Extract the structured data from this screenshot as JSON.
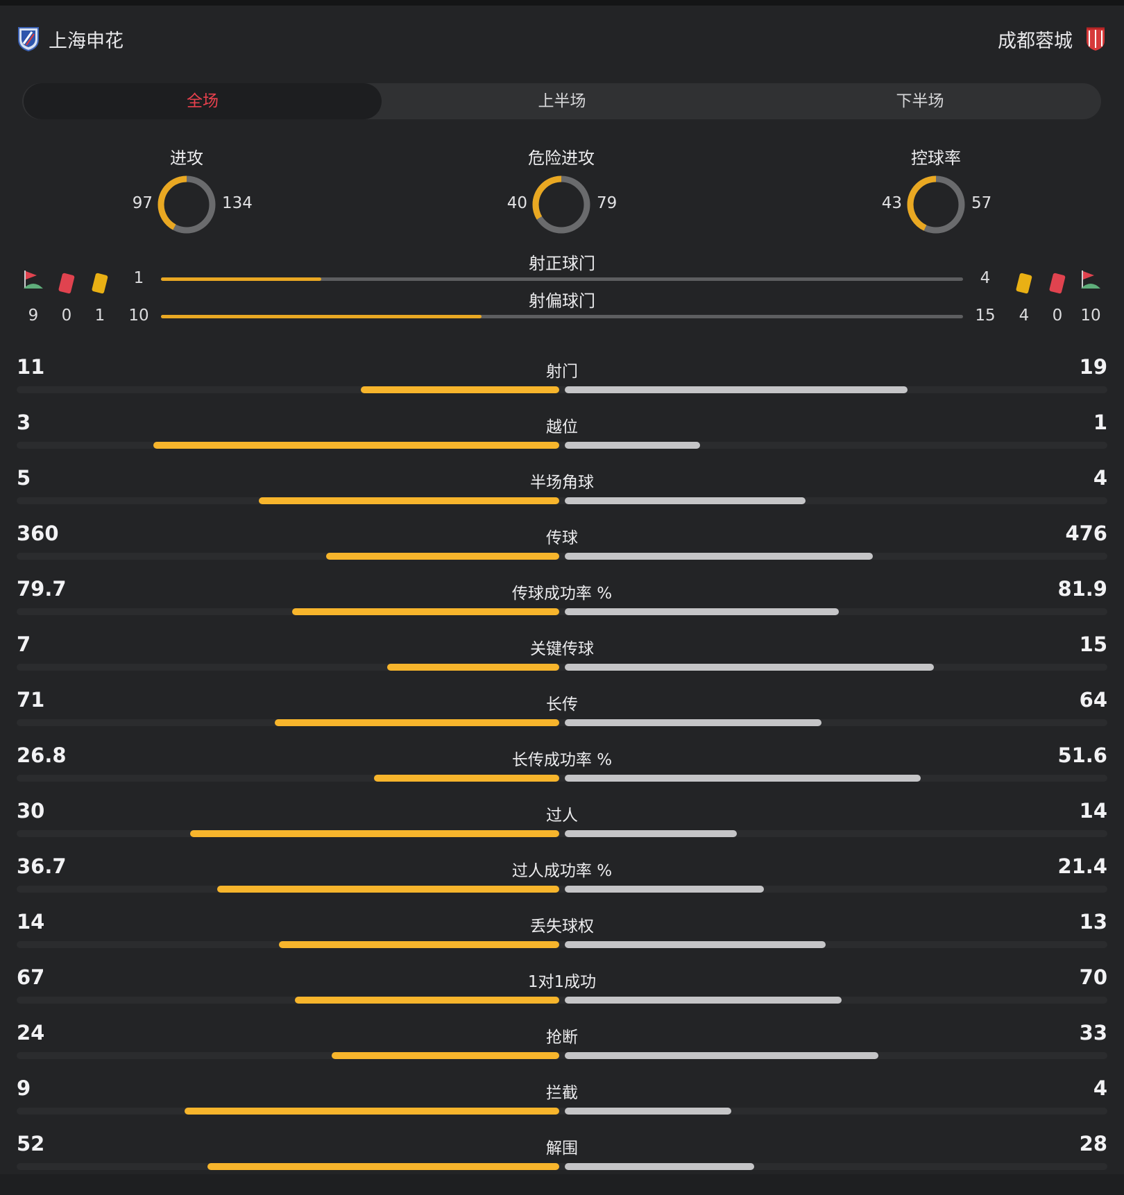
{
  "header": {
    "home_team": "上海申花",
    "away_team": "成都蓉城",
    "home_logo_icon": "shenhua-crest-icon",
    "away_logo_icon": "rongcheng-crest-icon"
  },
  "tabs": [
    {
      "label": "全场",
      "active": true
    },
    {
      "label": "上半场",
      "active": false
    },
    {
      "label": "下半场",
      "active": false
    }
  ],
  "donuts": [
    {
      "title": "进攻",
      "home": 97,
      "away": 134
    },
    {
      "title": "危险进攻",
      "home": 40,
      "away": 79
    },
    {
      "title": "控球率",
      "home": 43,
      "away": 57
    }
  ],
  "shots": {
    "on_target": {
      "label": "射正球门",
      "home": 1,
      "away": 4
    },
    "off_target": {
      "label": "射偏球门",
      "home": 10,
      "away": 15
    }
  },
  "events": {
    "home": {
      "corners": 9,
      "red_cards": 0,
      "yellow_cards": 1
    },
    "away": {
      "yellow_cards": 4,
      "red_cards": 0,
      "corners": 10
    }
  },
  "stats": [
    {
      "label": "射门",
      "home": "11",
      "away": "19"
    },
    {
      "label": "越位",
      "home": "3",
      "away": "1"
    },
    {
      "label": "半场角球",
      "home": "5",
      "away": "4"
    },
    {
      "label": "传球",
      "home": "360",
      "away": "476"
    },
    {
      "label": "传球成功率 %",
      "home": "79.7",
      "away": "81.9"
    },
    {
      "label": "关键传球",
      "home": "7",
      "away": "15"
    },
    {
      "label": "长传",
      "home": "71",
      "away": "64"
    },
    {
      "label": "长传成功率 %",
      "home": "26.8",
      "away": "51.6"
    },
    {
      "label": "过人",
      "home": "30",
      "away": "14"
    },
    {
      "label": "过人成功率 %",
      "home": "36.7",
      "away": "21.4"
    },
    {
      "label": "丢失球权",
      "home": "14",
      "away": "13"
    },
    {
      "label": "1对1成功",
      "home": "67",
      "away": "70"
    },
    {
      "label": "抢断",
      "home": "24",
      "away": "33"
    },
    {
      "label": "拦截",
      "home": "9",
      "away": "4"
    },
    {
      "label": "解围",
      "home": "52",
      "away": "28"
    }
  ],
  "colors": {
    "home": "#f7b52c",
    "away": "#c5c5c7",
    "away_ring": "#6a6b6d",
    "active_tab": "#e8414d",
    "red_card": "#e0434f",
    "yellow_card": "#e9b014"
  }
}
